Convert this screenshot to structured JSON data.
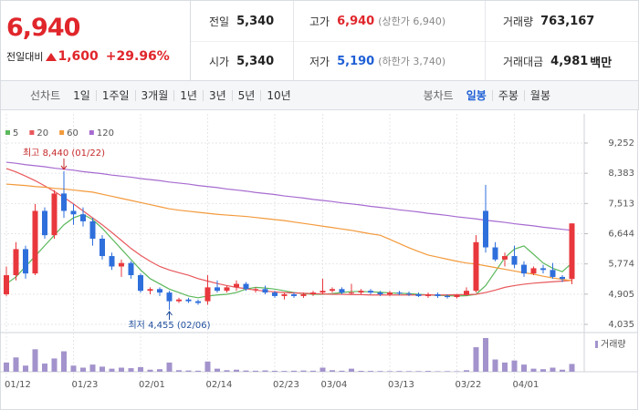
{
  "header": {
    "price": "6,940",
    "change_label": "전일대비",
    "change": "1,600",
    "change_rate": "+29.96%",
    "stats": [
      {
        "label": "전일",
        "value": "5,340"
      },
      {
        "label": "고가",
        "value": "6,940",
        "note": "(상한가 6,940)",
        "color": "#e0262b"
      },
      {
        "label": "거래량",
        "value": "763,167"
      },
      {
        "label": "시가",
        "value": "5,340"
      },
      {
        "label": "저가",
        "value": "5,190",
        "note": "(하한가 3,740)",
        "color": "#1f5fd6"
      },
      {
        "label": "거래대금",
        "value": "4,981",
        "unit": "백만"
      }
    ]
  },
  "tabs": {
    "line_title": "선차트",
    "line": [
      "1일",
      "1주일",
      "3개월",
      "1년",
      "3년",
      "5년",
      "10년"
    ],
    "candle_title": "봉차트",
    "candle": [
      "일봉",
      "주봉",
      "월봉"
    ],
    "active": "일봉"
  },
  "chart_data": {
    "type": "candlestick",
    "categories": [
      "01/12",
      null,
      null,
      null,
      null,
      null,
      null,
      "01/23",
      null,
      null,
      null,
      null,
      null,
      null,
      "02/01",
      null,
      null,
      null,
      null,
      null,
      null,
      "02/14",
      null,
      null,
      null,
      null,
      null,
      null,
      "02/23",
      null,
      null,
      null,
      null,
      "03/04",
      null,
      null,
      null,
      null,
      null,
      null,
      "03/13",
      null,
      null,
      null,
      null,
      null,
      null,
      "03/22",
      null,
      null,
      null,
      null,
      null,
      "04/01",
      null,
      null,
      null,
      null,
      null,
      null
    ],
    "open": [
      4900,
      5450,
      6200,
      5500,
      7300,
      6600,
      7800,
      7300,
      7200,
      7000,
      6500,
      6000,
      5700,
      5800,
      5450,
      5000,
      5050,
      4950,
      4700,
      4750,
      4700,
      4700,
      5100,
      5000,
      5100,
      5200,
      5050,
      5050,
      4950,
      4850,
      4900,
      4850,
      4900,
      4950,
      5000,
      5050,
      4950,
      4950,
      5000,
      4950,
      4900,
      4950,
      4920,
      4900,
      4850,
      4900,
      4850,
      4820,
      4880,
      5000,
      7300,
      6250,
      5900,
      6000,
      5750,
      5500,
      5650,
      5600,
      5400,
      5340
    ],
    "high": [
      5700,
      6400,
      6300,
      7500,
      7400,
      7900,
      8440,
      7500,
      7400,
      7100,
      6600,
      6100,
      5900,
      5850,
      5500,
      5100,
      5100,
      5000,
      4800,
      4800,
      4750,
      5450,
      5300,
      5150,
      5300,
      5250,
      5100,
      5150,
      5000,
      4950,
      4950,
      4950,
      5000,
      5350,
      5100,
      5100,
      5200,
      5050,
      5050,
      5000,
      5000,
      5000,
      4980,
      4950,
      4950,
      4950,
      4900,
      4900,
      5100,
      6600,
      8050,
      6400,
      6100,
      6300,
      5850,
      5700,
      5750,
      5800,
      5450,
      6940
    ],
    "low": [
      4850,
      5300,
      5350,
      5450,
      6500,
      6500,
      7100,
      6900,
      6850,
      6300,
      5900,
      5600,
      5400,
      5350,
      4950,
      4900,
      4850,
      4455,
      4650,
      4650,
      4600,
      4600,
      4950,
      4950,
      5000,
      5000,
      4950,
      4900,
      4800,
      4750,
      4800,
      4800,
      4850,
      4900,
      4950,
      4900,
      4900,
      4900,
      4900,
      4850,
      4850,
      4880,
      4850,
      4820,
      4800,
      4800,
      4780,
      4780,
      4850,
      4950,
      6100,
      5850,
      5700,
      5650,
      5400,
      5450,
      5500,
      5350,
      5250,
      5190
    ],
    "close": [
      5450,
      6200,
      5500,
      7300,
      6600,
      7800,
      7300,
      7200,
      7000,
      6500,
      6000,
      5700,
      5800,
      5450,
      5000,
      5050,
      4950,
      4700,
      4750,
      4700,
      4650,
      5100,
      5000,
      5100,
      5200,
      5050,
      5050,
      4950,
      4850,
      4900,
      4850,
      4900,
      4950,
      5000,
      5050,
      4950,
      4950,
      5000,
      4950,
      4900,
      4950,
      4920,
      4900,
      4850,
      4900,
      4850,
      4820,
      4880,
      5000,
      6400,
      6250,
      5900,
      6000,
      5750,
      5500,
      5650,
      5600,
      5400,
      5340,
      6940
    ],
    "up_color": "#e8383d",
    "down_color": "#2f6fdc",
    "series": [
      {
        "name": "5",
        "color": "#5cb85c",
        "values": [
          5200,
          5400,
          5700,
          6000,
          6300,
          6600,
          6900,
          7100,
          7200,
          7050,
          6800,
          6500,
          6200,
          5900,
          5600,
          5350,
          5200,
          5050,
          4950,
          4850,
          4800,
          4850,
          4880,
          4900,
          4950,
          5050,
          5100,
          5080,
          5050,
          5000,
          4950,
          4920,
          4900,
          4900,
          4920,
          4950,
          4980,
          4980,
          4970,
          4960,
          4940,
          4930,
          4920,
          4900,
          4880,
          4870,
          4860,
          4850,
          4860,
          4900,
          5150,
          5550,
          5950,
          6200,
          6290,
          6050,
          5800,
          5650,
          5550,
          5800
        ]
      },
      {
        "name": "20",
        "color": "#e8585c",
        "values": [
          8520,
          8420,
          8300,
          8170,
          8020,
          7860,
          7690,
          7500,
          7300,
          7100,
          6900,
          6680,
          6450,
          6220,
          6020,
          5850,
          5700,
          5600,
          5520,
          5450,
          5350,
          5280,
          5210,
          5150,
          5100,
          5060,
          5020,
          4990,
          4970,
          4950,
          4940,
          4930,
          4920,
          4910,
          4900,
          4900,
          4890,
          4890,
          4880,
          4880,
          4880,
          4880,
          4880,
          4880,
          4880,
          4880,
          4880,
          4890,
          4890,
          4900,
          4950,
          5020,
          5100,
          5150,
          5190,
          5220,
          5240,
          5260,
          5280,
          5300
        ]
      },
      {
        "name": "60",
        "color": "#f39a3c",
        "values": [
          8070,
          8050,
          8030,
          8000,
          7980,
          7950,
          7930,
          7900,
          7870,
          7840,
          7780,
          7720,
          7660,
          7600,
          7540,
          7480,
          7420,
          7360,
          7320,
          7290,
          7260,
          7230,
          7200,
          7180,
          7160,
          7140,
          7110,
          7080,
          7050,
          7020,
          6980,
          6940,
          6900,
          6860,
          6820,
          6780,
          6740,
          6690,
          6640,
          6600,
          6480,
          6360,
          6240,
          6130,
          6030,
          5970,
          5910,
          5850,
          5800,
          5770,
          5720,
          5670,
          5620,
          5570,
          5520,
          5480,
          5420,
          5370,
          5330,
          5290
        ]
      },
      {
        "name": "120",
        "color": "#a66bd0",
        "values": [
          8700,
          8670,
          8630,
          8600,
          8570,
          8530,
          8500,
          8470,
          8430,
          8400,
          8370,
          8330,
          8300,
          8270,
          8230,
          8200,
          8170,
          8130,
          8100,
          8070,
          8030,
          8000,
          7970,
          7930,
          7900,
          7870,
          7830,
          7800,
          7770,
          7730,
          7700,
          7670,
          7630,
          7600,
          7570,
          7530,
          7500,
          7470,
          7430,
          7400,
          7370,
          7330,
          7300,
          7270,
          7230,
          7200,
          7170,
          7130,
          7100,
          7070,
          7030,
          7000,
          6970,
          6930,
          6900,
          6870,
          6830,
          6800,
          6770,
          6740
        ]
      }
    ],
    "volume": {
      "name": "거래량",
      "color": "#a393cc",
      "values": [
        900000,
        1400000,
        600000,
        2200000,
        800000,
        1300000,
        2000000,
        600000,
        400000,
        700000,
        500000,
        300000,
        400000,
        350000,
        450000,
        200000,
        250000,
        900000,
        150000,
        120000,
        100000,
        1000000,
        300000,
        150000,
        200000,
        120000,
        100000,
        130000,
        90000,
        80000,
        100000,
        120000,
        100000,
        400000,
        150000,
        100000,
        300000,
        90000,
        80000,
        70000,
        60000,
        70000,
        60000,
        60000,
        80000,
        50000,
        60000,
        50000,
        150000,
        2400000,
        3300000,
        1200000,
        900000,
        1100000,
        700000,
        300000,
        250000,
        400000,
        200000,
        763167
      ]
    },
    "ylim": [
      3799,
      10091
    ],
    "yticks": [
      {
        "value": 4035,
        "label": "4,035"
      },
      {
        "value": 4905,
        "label": "4,905"
      },
      {
        "value": 5774,
        "label": "5,774"
      },
      {
        "value": 6644,
        "label": "6,644"
      },
      {
        "value": 7513,
        "label": "7,513"
      },
      {
        "value": 8383,
        "label": "8,383"
      },
      {
        "value": 9252,
        "label": "9,252"
      }
    ],
    "grid": true,
    "max_label": "최고 8,440 (01/22)",
    "min_label": "최저 4,455 (02/06)"
  }
}
